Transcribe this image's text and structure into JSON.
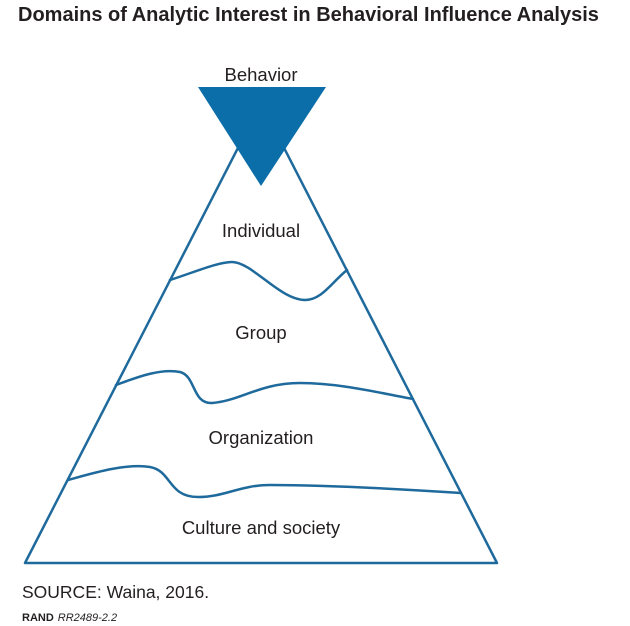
{
  "title": "Domains of Analytic Interest in Behavioral Influence Analysis",
  "diagram": {
    "apex": {
      "label": "Behavior"
    },
    "layers": [
      {
        "label": "Individual"
      },
      {
        "label": "Group"
      },
      {
        "label": "Organization"
      },
      {
        "label": "Culture and society"
      }
    ],
    "colors": {
      "apex_triangle": "#0b6ea9",
      "outline": "#1f6a9c",
      "text": "#231f20"
    }
  },
  "source": {
    "text": "SOURCE: Waina, 2016."
  },
  "figure_id": {
    "publisher": "RAND",
    "number": "RR2489-2.2"
  }
}
